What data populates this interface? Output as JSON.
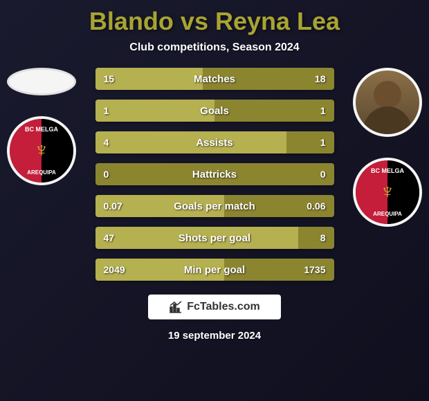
{
  "title": "Blando vs Reyna Lea",
  "subtitle": "Club competitions, Season 2024",
  "date": "19 september 2024",
  "footer_brand": "FcTables.com",
  "colors": {
    "accent": "#a8a432",
    "bar_bg": "#8b8530",
    "bar_fill": "#b5b050",
    "background_dark": "#1a1a2e",
    "badge_red": "#c41e3a",
    "badge_black": "#000000",
    "badge_gold": "#d4af37"
  },
  "club_badge": {
    "text_top": "BC MELGA",
    "text_bottom": "AREQUIPA"
  },
  "stats": [
    {
      "label": "Matches",
      "left_value": "15",
      "right_value": "18",
      "left_fill_pct": 45,
      "right_fill_pct": 0
    },
    {
      "label": "Goals",
      "left_value": "1",
      "right_value": "1",
      "left_fill_pct": 50,
      "right_fill_pct": 0
    },
    {
      "label": "Assists",
      "left_value": "4",
      "right_value": "1",
      "left_fill_pct": 80,
      "right_fill_pct": 0
    },
    {
      "label": "Hattricks",
      "left_value": "0",
      "right_value": "0",
      "left_fill_pct": 0,
      "right_fill_pct": 0
    },
    {
      "label": "Goals per match",
      "left_value": "0.07",
      "right_value": "0.06",
      "left_fill_pct": 54,
      "right_fill_pct": 0
    },
    {
      "label": "Shots per goal",
      "left_value": "47",
      "right_value": "8",
      "left_fill_pct": 85,
      "right_fill_pct": 0
    },
    {
      "label": "Min per goal",
      "left_value": "2049",
      "right_value": "1735",
      "left_fill_pct": 54,
      "right_fill_pct": 0
    }
  ]
}
